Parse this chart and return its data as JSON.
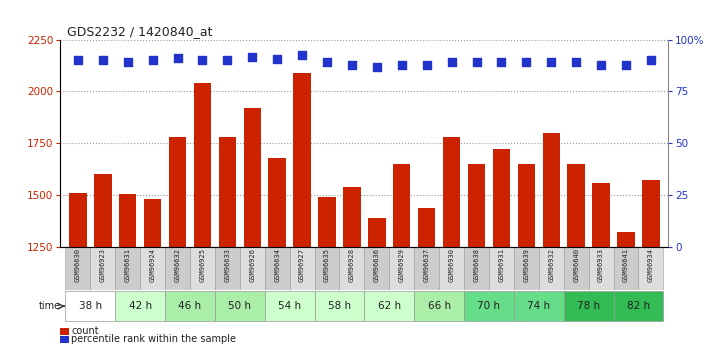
{
  "title": "GDS2232 / 1420840_at",
  "samples": [
    "GSM96630",
    "GSM96923",
    "GSM96631",
    "GSM96924",
    "GSM96632",
    "GSM96925",
    "GSM96633",
    "GSM96926",
    "GSM96634",
    "GSM96927",
    "GSM96635",
    "GSM96928",
    "GSM96636",
    "GSM96929",
    "GSM96637",
    "GSM96930",
    "GSM96638",
    "GSM96931",
    "GSM96639",
    "GSM96932",
    "GSM96640",
    "GSM96933",
    "GSM96641",
    "GSM96934"
  ],
  "counts": [
    1510,
    1600,
    1505,
    1480,
    1780,
    2040,
    1780,
    1920,
    1680,
    2090,
    1490,
    1540,
    1390,
    1650,
    1435,
    1780,
    1650,
    1720,
    1650,
    1800,
    1650,
    1560,
    1320,
    1570
  ],
  "percentile_ranks_left_scale": [
    2150,
    2150,
    2140,
    2150,
    2160,
    2150,
    2150,
    2165,
    2155,
    2175,
    2140,
    2130,
    2120,
    2130,
    2130,
    2140,
    2140,
    2140,
    2140,
    2140,
    2140,
    2130,
    2130,
    2150
  ],
  "time_group_colors": [
    "#ffffff",
    "#ccffcc",
    "#aaeeaa",
    "#aaeeaa",
    "#ccffcc",
    "#ccffcc",
    "#ccffcc",
    "#aaeeaa",
    "#66dd88",
    "#66dd88",
    "#33bb55",
    "#33bb55"
  ],
  "time_groups": [
    {
      "label": "38 h",
      "indices": [
        0,
        1
      ]
    },
    {
      "label": "42 h",
      "indices": [
        2,
        3
      ]
    },
    {
      "label": "46 h",
      "indices": [
        4,
        5
      ]
    },
    {
      "label": "50 h",
      "indices": [
        6,
        7
      ]
    },
    {
      "label": "54 h",
      "indices": [
        8,
        9
      ]
    },
    {
      "label": "58 h",
      "indices": [
        10,
        11
      ]
    },
    {
      "label": "62 h",
      "indices": [
        12,
        13
      ]
    },
    {
      "label": "66 h",
      "indices": [
        14,
        15
      ]
    },
    {
      "label": "70 h",
      "indices": [
        16,
        17
      ]
    },
    {
      "label": "74 h",
      "indices": [
        18,
        19
      ]
    },
    {
      "label": "78 h",
      "indices": [
        20,
        21
      ]
    },
    {
      "label": "82 h",
      "indices": [
        22,
        23
      ]
    }
  ],
  "bar_color": "#cc2200",
  "dot_color": "#2233cc",
  "ylim_left": [
    1250,
    2250
  ],
  "ylim_right": [
    0,
    100
  ],
  "yticks_left": [
    1250,
    1500,
    1750,
    2000,
    2250
  ],
  "yticks_right": [
    0,
    25,
    50,
    75,
    100
  ],
  "ytick_labels_right": [
    "0",
    "25",
    "50",
    "75",
    "100%"
  ],
  "bar_width": 0.7,
  "sample_label_color": "#222222",
  "axis_label_color_left": "#cc2200",
  "axis_label_color_right": "#2233cc",
  "grid_color": "#999999",
  "bg_color": "#ffffff",
  "sample_bg_odd": "#cccccc",
  "sample_bg_even": "#dddddd"
}
